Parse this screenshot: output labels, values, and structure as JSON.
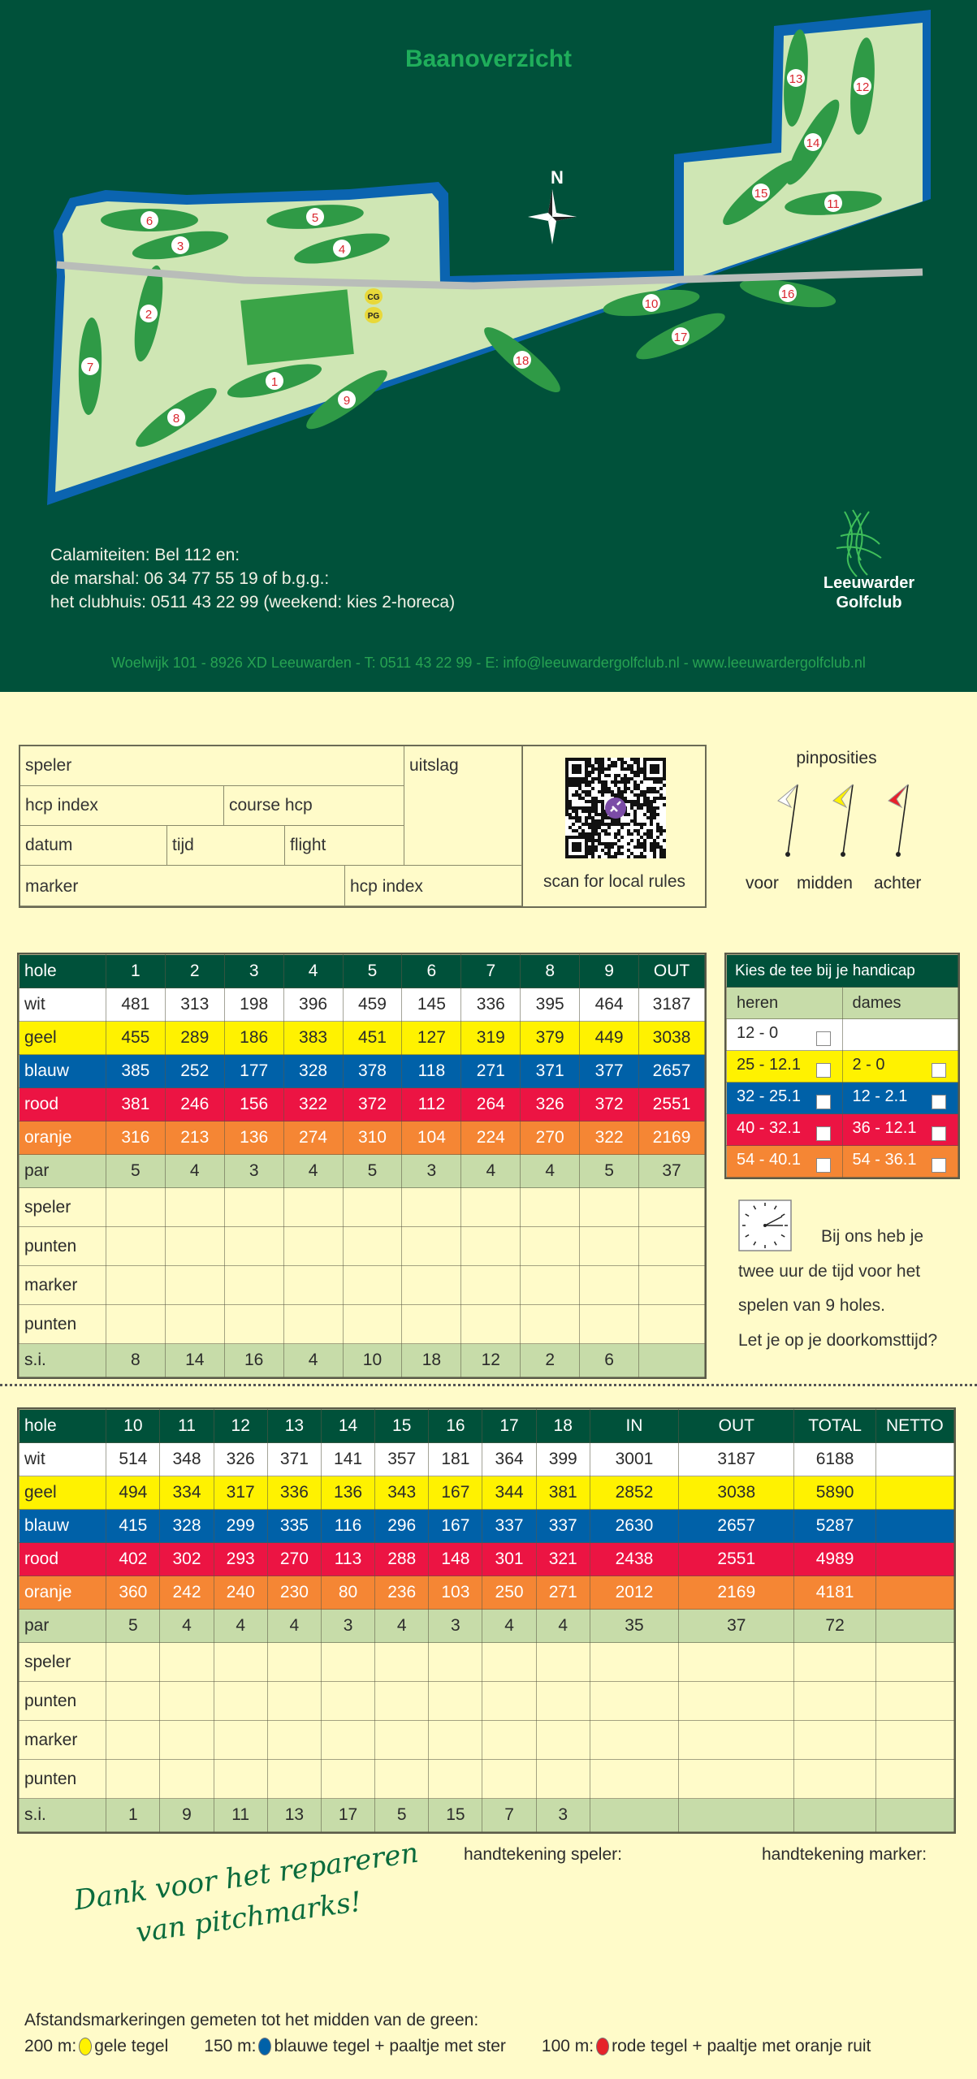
{
  "header": {
    "title": "Baanoverzicht",
    "north_label": "N",
    "map_hole_labels": [
      "1",
      "2",
      "3",
      "4",
      "5",
      "6",
      "7",
      "8",
      "9",
      "10",
      "11",
      "12",
      "13",
      "14",
      "15",
      "16",
      "17",
      "18"
    ],
    "map_facility_labels": [
      "CG",
      "PG"
    ],
    "emergency": [
      "Calamiteiten: Bel 112 en:",
      "de marshal: 06 34 77 55 19 of b.g.g.:",
      "het clubhuis: 0511 43 22 99 (weekend: kies 2-horeca)"
    ],
    "logo": {
      "line1": "Leeuwarder",
      "line2": "Golfclub"
    },
    "footer": "Woelwijk 101  -  8926 XD Leeuwarden  -  T: 0511 43 22 99  -  E: info@leeuwardergolfclub.nl  -  www.leeuwardergolfclub.nl",
    "colors": {
      "background": "#00513a",
      "title": "#1fae5b",
      "footer": "#27a352"
    }
  },
  "form": {
    "speler": "speler",
    "uitslag": "uitslag",
    "hcp_index": "hcp index",
    "course_hcp": "course hcp",
    "datum": "datum",
    "tijd": "tijd",
    "flight": "flight",
    "marker": "marker",
    "marker_hcp_index": "hcp index",
    "qr_caption": "scan for local rules"
  },
  "pins": {
    "title": "pinposities",
    "labels": [
      "voor",
      "midden",
      "achter"
    ],
    "colors": [
      "#ffffff",
      "#fff200",
      "#e8202a"
    ]
  },
  "tee_colors": {
    "wit": "#ffffff",
    "geel": "#fff200",
    "blauw": "#0061a8",
    "rood": "#ec1443",
    "oranje": "#f58634",
    "par": "#c7dca9",
    "head": "#00513a"
  },
  "front9": {
    "headers": [
      "hole",
      "1",
      "2",
      "3",
      "4",
      "5",
      "6",
      "7",
      "8",
      "9",
      "OUT"
    ],
    "rows": [
      {
        "label": "wit",
        "tee": "wit",
        "values": [
          "481",
          "313",
          "198",
          "396",
          "459",
          "145",
          "336",
          "395",
          "464",
          "3187"
        ]
      },
      {
        "label": "geel",
        "tee": "geel",
        "values": [
          "455",
          "289",
          "186",
          "383",
          "451",
          "127",
          "319",
          "379",
          "449",
          "3038"
        ]
      },
      {
        "label": "blauw",
        "tee": "blauw",
        "values": [
          "385",
          "252",
          "177",
          "328",
          "378",
          "118",
          "271",
          "371",
          "377",
          "2657"
        ]
      },
      {
        "label": "rood",
        "tee": "rood",
        "values": [
          "381",
          "246",
          "156",
          "322",
          "372",
          "112",
          "264",
          "326",
          "372",
          "2551"
        ]
      },
      {
        "label": "oranje",
        "tee": "oranje",
        "values": [
          "316",
          "213",
          "136",
          "274",
          "310",
          "104",
          "224",
          "270",
          "322",
          "2169"
        ]
      },
      {
        "label": "par",
        "tee": "par",
        "values": [
          "5",
          "4",
          "3",
          "4",
          "5",
          "3",
          "4",
          "4",
          "5",
          "37"
        ]
      },
      {
        "label": "speler",
        "tee": "blank",
        "values": []
      },
      {
        "label": "punten",
        "tee": "blank",
        "values": []
      },
      {
        "label": "marker",
        "tee": "blank",
        "values": []
      },
      {
        "label": "punten",
        "tee": "blank",
        "values": []
      },
      {
        "label": "s.i.",
        "tee": "par",
        "values": [
          "8",
          "14",
          "16",
          "4",
          "10",
          "18",
          "12",
          "2",
          "6",
          ""
        ]
      }
    ]
  },
  "back9": {
    "headers": [
      "hole",
      "10",
      "11",
      "12",
      "13",
      "14",
      "15",
      "16",
      "17",
      "18",
      "IN",
      "OUT",
      "TOTAL",
      "NETTO"
    ],
    "rows": [
      {
        "label": "wit",
        "tee": "wit",
        "values": [
          "514",
          "348",
          "326",
          "371",
          "141",
          "357",
          "181",
          "364",
          "399",
          "3001",
          "3187",
          "6188",
          ""
        ]
      },
      {
        "label": "geel",
        "tee": "geel",
        "values": [
          "494",
          "334",
          "317",
          "336",
          "136",
          "343",
          "167",
          "344",
          "381",
          "2852",
          "3038",
          "5890",
          ""
        ]
      },
      {
        "label": "blauw",
        "tee": "blauw",
        "values": [
          "415",
          "328",
          "299",
          "335",
          "116",
          "296",
          "167",
          "337",
          "337",
          "2630",
          "2657",
          "5287",
          ""
        ]
      },
      {
        "label": "rood",
        "tee": "rood",
        "values": [
          "402",
          "302",
          "293",
          "270",
          "113",
          "288",
          "148",
          "301",
          "321",
          "2438",
          "2551",
          "4989",
          ""
        ]
      },
      {
        "label": "oranje",
        "tee": "oranje",
        "values": [
          "360",
          "242",
          "240",
          "230",
          "80",
          "236",
          "103",
          "250",
          "271",
          "2012",
          "2169",
          "4181",
          ""
        ]
      },
      {
        "label": "par",
        "tee": "par",
        "values": [
          "5",
          "4",
          "4",
          "4",
          "3",
          "4",
          "3",
          "4",
          "4",
          "35",
          "37",
          "72",
          ""
        ]
      },
      {
        "label": "speler",
        "tee": "blank",
        "values": []
      },
      {
        "label": "punten",
        "tee": "blank",
        "values": []
      },
      {
        "label": "marker",
        "tee": "blank",
        "values": []
      },
      {
        "label": "punten",
        "tee": "blank",
        "values": []
      },
      {
        "label": "s.i.",
        "tee": "par",
        "values": [
          "1",
          "9",
          "11",
          "13",
          "17",
          "5",
          "15",
          "7",
          "3",
          "",
          "",
          "",
          ""
        ]
      }
    ]
  },
  "tee_choice": {
    "title": "Kies de tee bij je handicap",
    "columns": [
      "heren",
      "dames"
    ],
    "rows": [
      {
        "tee": "wit",
        "heren": "12 -  0",
        "dames": ""
      },
      {
        "tee": "geel",
        "heren": "25 - 12.1",
        "dames": "2 -    0"
      },
      {
        "tee": "blauw",
        "heren": "32 - 25.1",
        "dames": "12 -  2.1"
      },
      {
        "tee": "rood",
        "heren": "40 - 32.1",
        "dames": "36 - 12.1"
      },
      {
        "tee": "oranje",
        "heren": "54 - 40.1",
        "dames": "54 - 36.1"
      }
    ]
  },
  "tip": {
    "icon": "clock-icon",
    "lines": [
      "Bij ons heb je",
      "twee uur de tijd voor het",
      "spelen van 9 holes.",
      "Let je op je doorkomsttijd?"
    ]
  },
  "signatures": {
    "speler": "handtekening speler:",
    "marker": "handtekening marker:"
  },
  "thanks": {
    "line1": "Dank voor het repareren",
    "line2": "van pitchmarks!"
  },
  "distance": {
    "title": "Afstandsmarkeringen gemeten tot het midden van de green:",
    "items": [
      {
        "dist": "200 m:",
        "text": "gele tegel",
        "color": "#fff200"
      },
      {
        "dist": "150 m:",
        "text": "blauwe tegel + paaltje met ster",
        "color": "#0061a8"
      },
      {
        "dist": "100 m:",
        "text": "rode tegel + paaltje met oranje ruit",
        "color": "#e52329"
      }
    ]
  }
}
